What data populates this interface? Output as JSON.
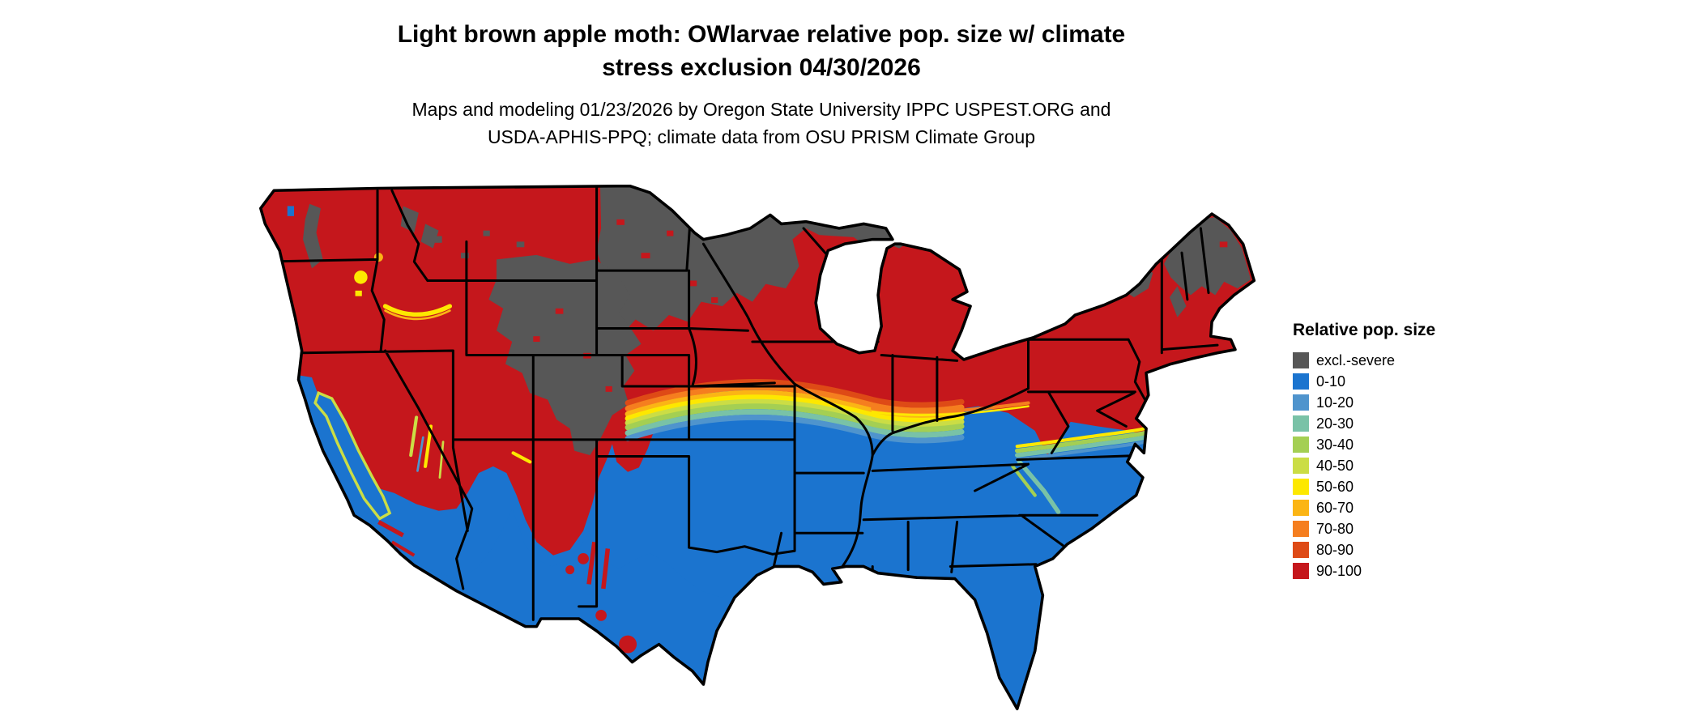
{
  "header": {
    "title_line1": "Light brown apple moth: OWlarvae relative pop. size w/ climate",
    "title_line2": "stress exclusion 04/30/2026",
    "subtitle_line1": "Maps and modeling 01/23/2026 by Oregon State University IPPC USPEST.ORG and",
    "subtitle_line2": "USDA-APHIS-PPQ; climate data from OSU PRISM Climate Group"
  },
  "legend": {
    "title": "Relative pop. size",
    "items": [
      {
        "label": "excl.-severe",
        "color": "#575757"
      },
      {
        "label": "0-10",
        "color": "#1b74cf"
      },
      {
        "label": "10-20",
        "color": "#4f94cd"
      },
      {
        "label": "20-30",
        "color": "#79c2a7"
      },
      {
        "label": "30-40",
        "color": "#a4cf53"
      },
      {
        "label": "40-50",
        "color": "#cbdd45"
      },
      {
        "label": "50-60",
        "color": "#fde800"
      },
      {
        "label": "60-70",
        "color": "#fbb515"
      },
      {
        "label": "70-80",
        "color": "#f57e1f"
      },
      {
        "label": "80-90",
        "color": "#de4a16"
      },
      {
        "label": "90-100",
        "color": "#c5171c"
      }
    ]
  },
  "map": {
    "region": "Conterminous United States",
    "kind": "raster population-size map with climate stress exclusion"
  }
}
